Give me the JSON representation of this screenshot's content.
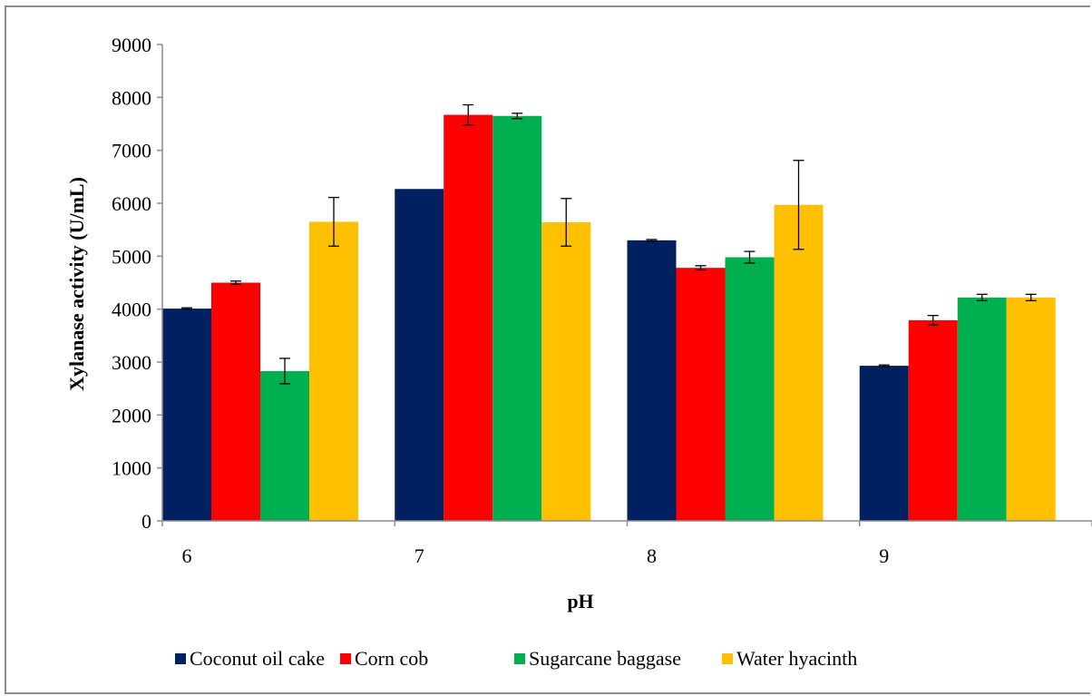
{
  "chart_data": {
    "type": "bar",
    "categories": [
      "6",
      "7",
      "8",
      "9"
    ],
    "xlabel": "pH",
    "ylabel": "Xylanase activity (U/mL)",
    "ylim": [
      0,
      9000
    ],
    "yticks": [
      0,
      1000,
      2000,
      3000,
      4000,
      5000,
      6000,
      7000,
      8000,
      9000
    ],
    "grid": false,
    "legend_position": "bottom",
    "series": [
      {
        "name": "Coconut oil cake",
        "color": "#002060",
        "values": [
          4010,
          6270,
          5300,
          2930
        ],
        "errors": [
          15,
          0,
          15,
          15
        ]
      },
      {
        "name": "Corn cob",
        "color": "#ff0000",
        "values": [
          4500,
          7670,
          4780,
          3790
        ],
        "errors": [
          30,
          190,
          40,
          90
        ]
      },
      {
        "name": "Sugarcane baggase",
        "color": "#00b050",
        "values": [
          2830,
          7650,
          4980,
          4220
        ],
        "errors": [
          240,
          50,
          110,
          60
        ]
      },
      {
        "name": "Water hyacinth",
        "color": "#ffc000",
        "values": [
          5650,
          5640,
          5970,
          4220
        ],
        "errors": [
          460,
          450,
          840,
          60
        ]
      }
    ]
  }
}
